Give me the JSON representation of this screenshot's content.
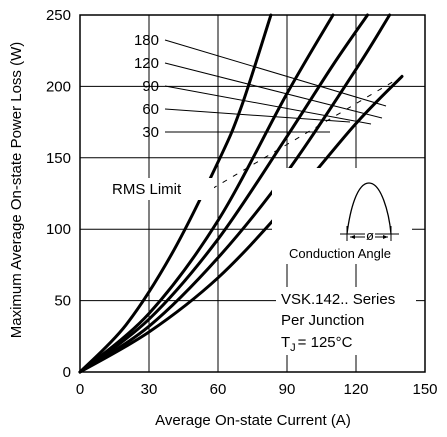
{
  "chart_data": {
    "type": "line",
    "title": "",
    "xlabel": "Average On-state Current (A)",
    "ylabel": "Maximum Average On-state Power Loss (W)",
    "xlim": [
      0,
      150
    ],
    "ylim": [
      0,
      250
    ],
    "x_ticks": [
      "0",
      "30",
      "60",
      "90",
      "120",
      "150"
    ],
    "y_ticks": [
      "0",
      "50",
      "100",
      "150",
      "200",
      "250"
    ],
    "grid": true,
    "series": [
      {
        "name": "180",
        "x": [
          0,
          20,
          40,
          60,
          70,
          83
        ],
        "y": [
          0,
          33,
          83,
          147,
          185,
          250
        ]
      },
      {
        "name": "120",
        "x": [
          0,
          30,
          60,
          90,
          110
        ],
        "y": [
          0,
          41,
          106,
          195,
          250
        ]
      },
      {
        "name": "90",
        "x": [
          0,
          30,
          60,
          90,
          110,
          125
        ],
        "y": [
          0,
          37,
          93,
          165,
          215,
          250
        ]
      },
      {
        "name": "60",
        "x": [
          0,
          30,
          60,
          90,
          120,
          135
        ],
        "y": [
          0,
          32,
          80,
          140,
          212,
          251
        ]
      },
      {
        "name": "30",
        "x": [
          0,
          30,
          60,
          90,
          120,
          140
        ],
        "y": [
          0,
          28,
          66,
          117,
          174,
          207
        ]
      }
    ],
    "rms_limit": {
      "label": "RMS Limit",
      "x": [
        61,
        140
      ],
      "y": [
        148,
        207
      ]
    },
    "annotations": {
      "conduction_angle": "Conduction Angle",
      "phi": "ø",
      "series_name": "VSK.142.. Series",
      "per_junction": "Per Junction",
      "tj_main": "T",
      "tj_sub": "J",
      "tj_value": "= 125°C"
    }
  }
}
